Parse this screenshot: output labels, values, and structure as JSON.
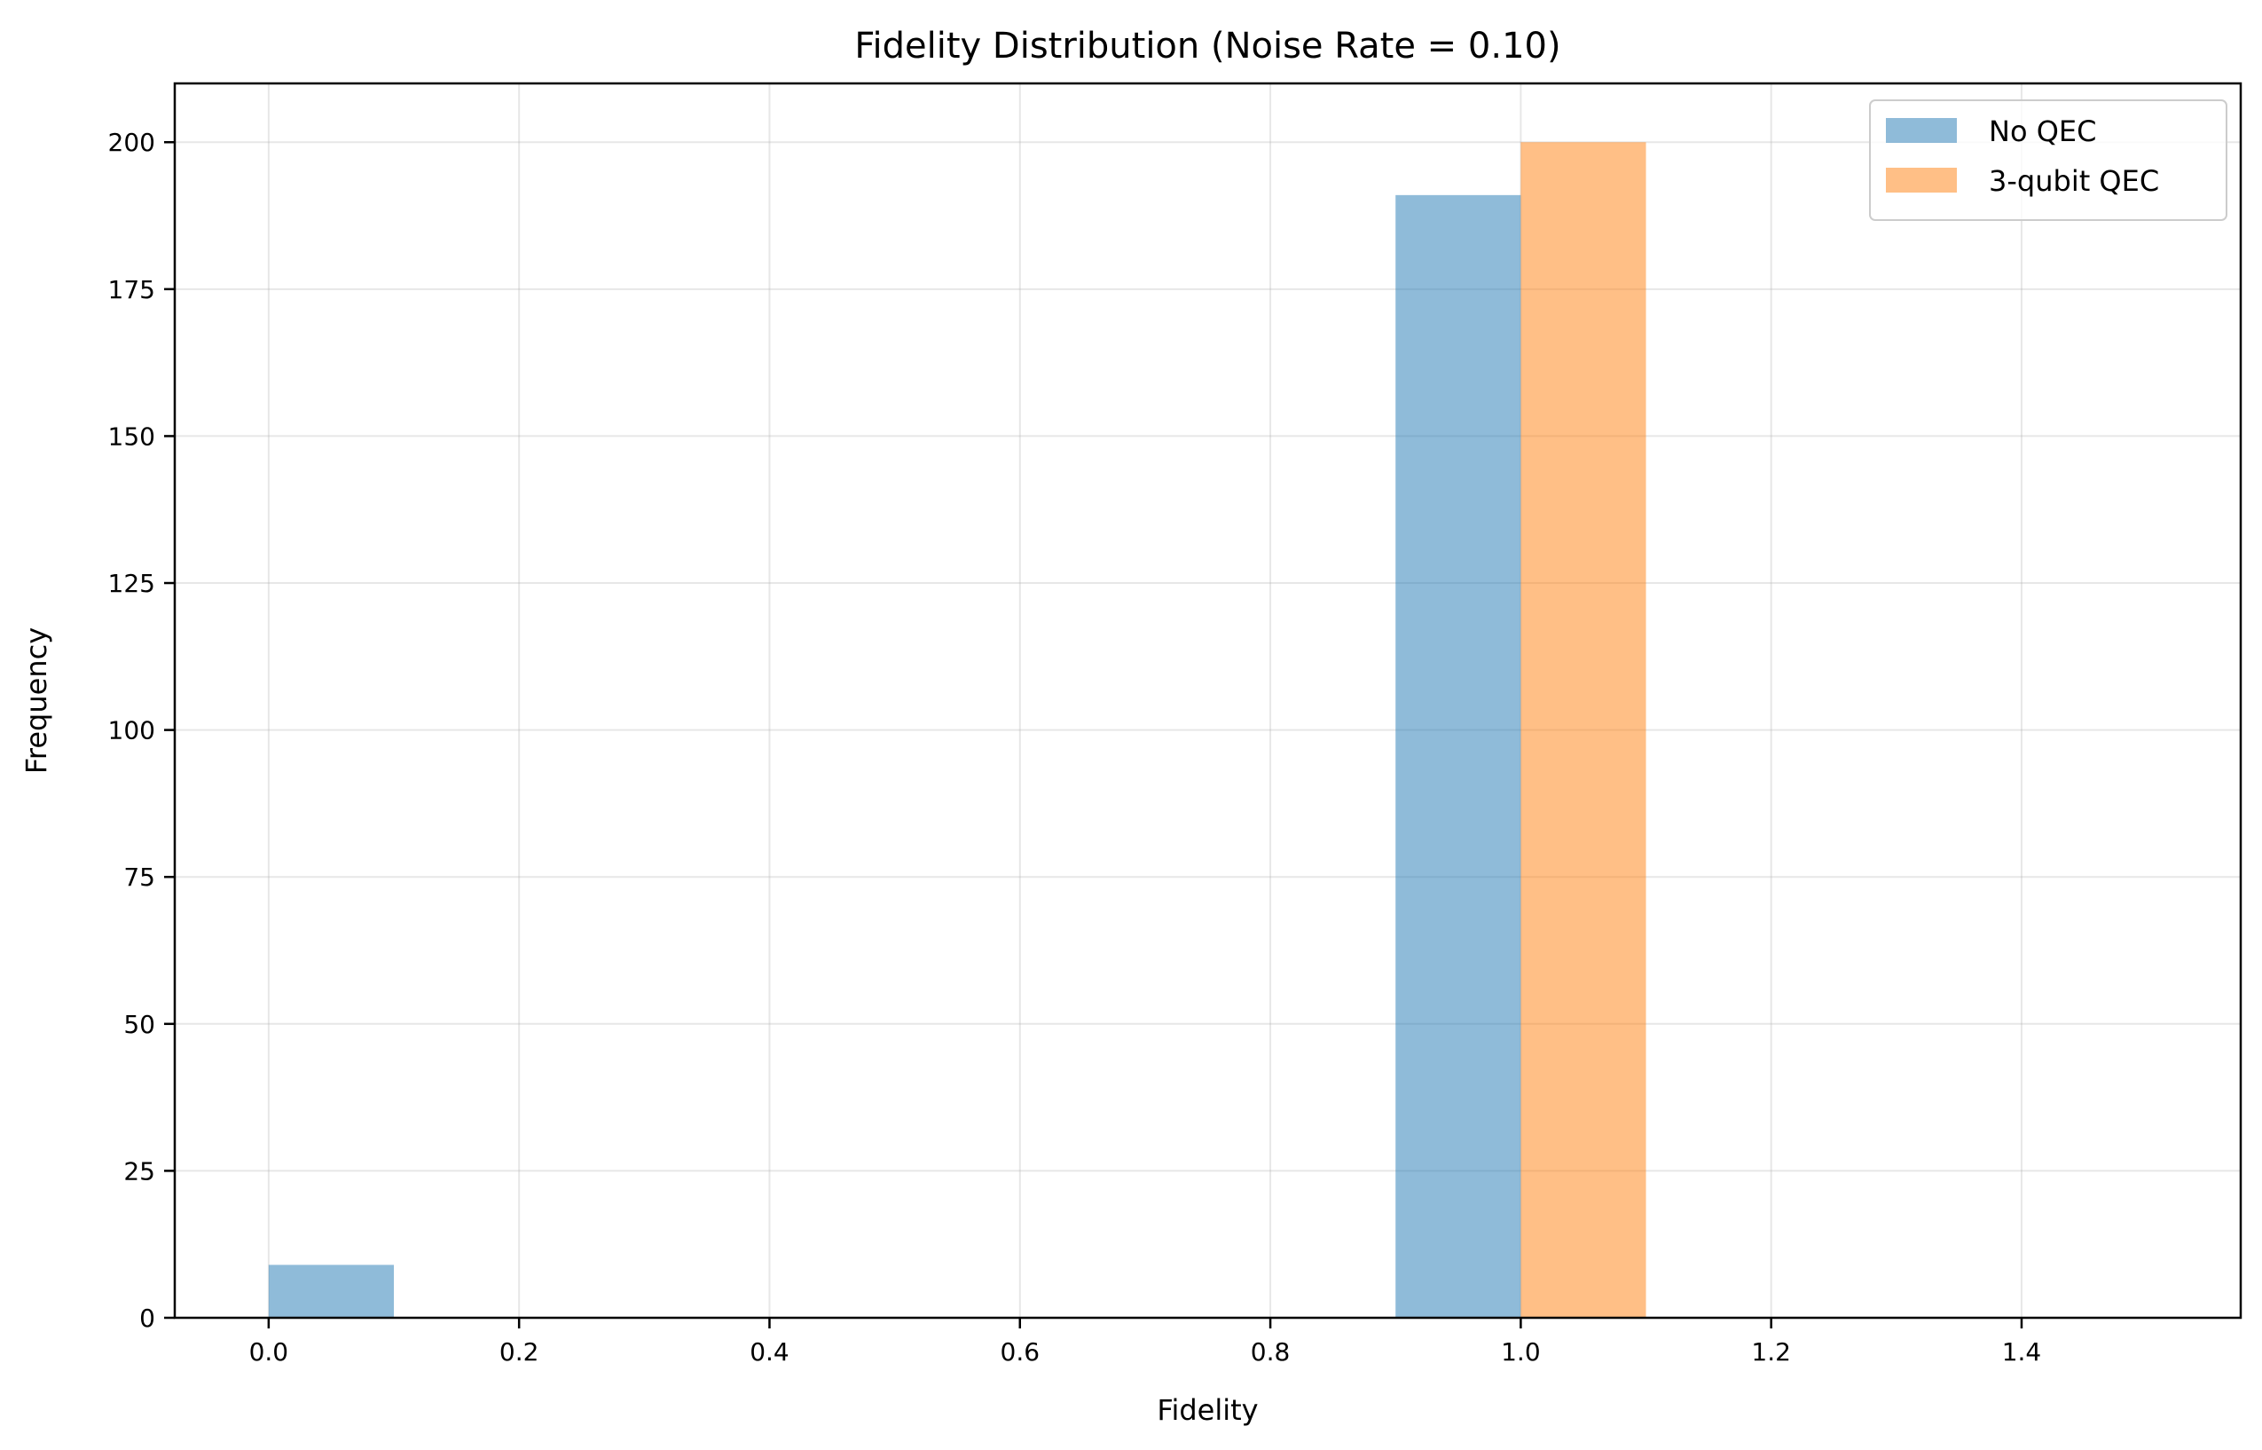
{
  "chart_data": {
    "type": "bar",
    "title": "Fidelity Distribution (Noise Rate = 0.10)",
    "xlabel": "Fidelity",
    "ylabel": "Frequency",
    "xlim": [
      -0.075,
      1.575
    ],
    "ylim": [
      0,
      210
    ],
    "xticks": [
      0.0,
      0.2,
      0.4,
      0.6,
      0.8,
      1.0,
      1.2,
      1.4
    ],
    "xtick_labels": [
      "0.0",
      "0.2",
      "0.4",
      "0.6",
      "0.8",
      "1.0",
      "1.2",
      "1.4"
    ],
    "yticks": [
      0,
      25,
      50,
      75,
      100,
      125,
      150,
      175,
      200
    ],
    "ytick_labels": [
      "0",
      "25",
      "50",
      "75",
      "100",
      "125",
      "150",
      "175",
      "200"
    ],
    "grid": true,
    "legend_position": "top-right",
    "series": [
      {
        "name": "No QEC",
        "color": "#1f77b4",
        "opacity": 0.5,
        "bars": [
          {
            "x0": 0.0,
            "x1": 0.1,
            "value": 9
          },
          {
            "x0": 0.9,
            "x1": 1.0,
            "value": 191
          }
        ]
      },
      {
        "name": "3-qubit QEC",
        "color": "#ff7f0e",
        "opacity": 0.5,
        "bars": [
          {
            "x0": 1.0,
            "x1": 1.1,
            "value": 200
          }
        ]
      }
    ]
  }
}
